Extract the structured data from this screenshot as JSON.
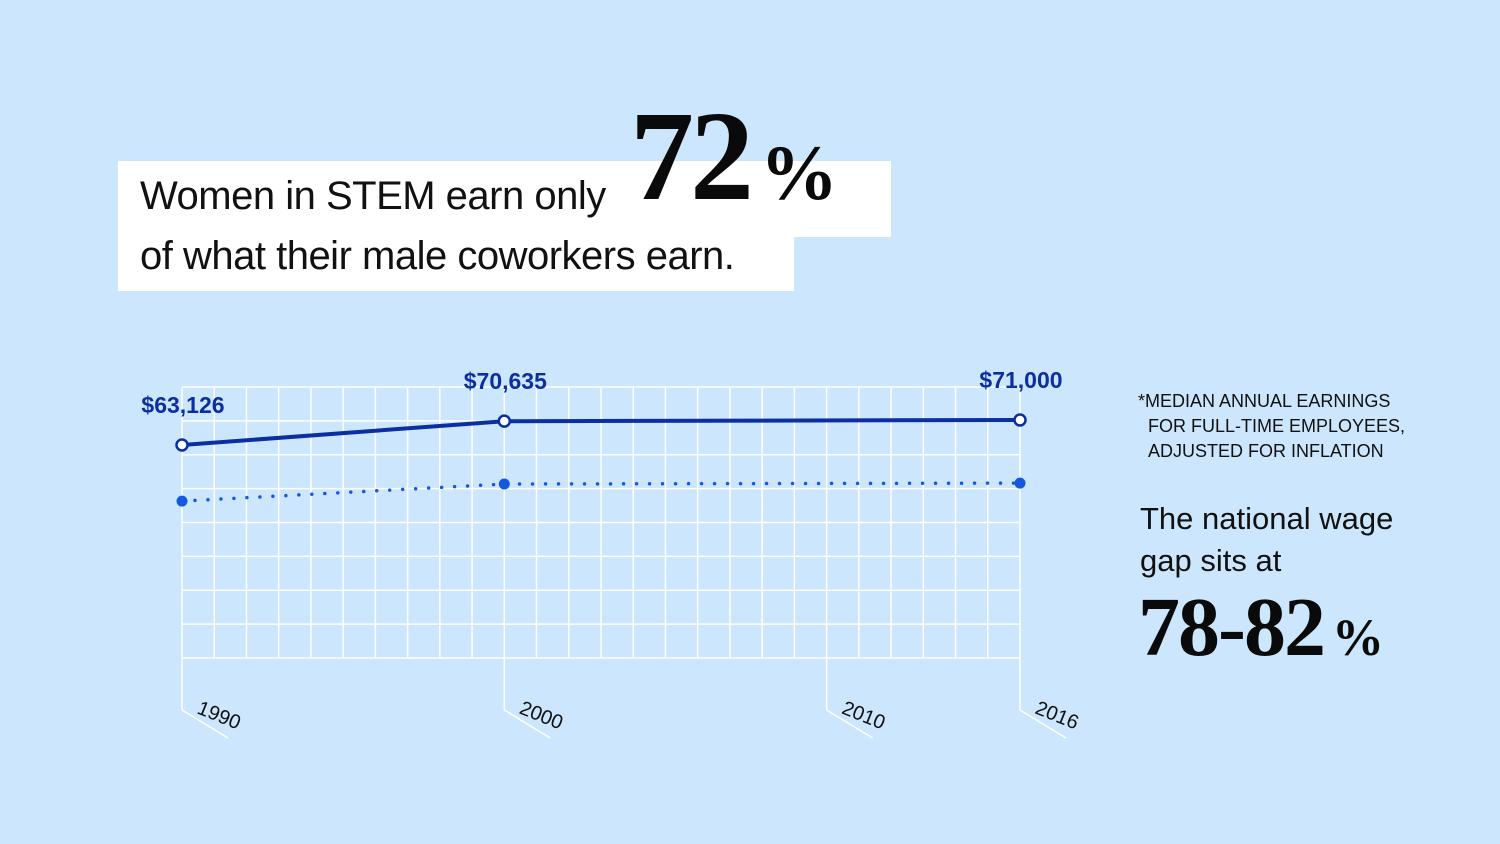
{
  "headline": {
    "line1": "Women in STEM earn only",
    "line2": "of what their male coworkers earn.",
    "stat_value": "72",
    "stat_symbol": "%"
  },
  "footnote": {
    "lines": [
      "*MEDIAN ANNUAL EARNINGS",
      "FOR FULL-TIME EMPLOYEES,",
      "ADJUSTED FOR INFLATION"
    ]
  },
  "national_gap": {
    "line1": "The national wage",
    "line2": "gap sits at",
    "value": "78-82",
    "symbol": "%"
  },
  "colors": {
    "background": "#cce6fd",
    "series_men": "#0b2fa0",
    "series_women": "#1558e0",
    "grid": "#ffffff",
    "label": "#0b2fa0"
  },
  "chart_data": {
    "type": "line",
    "x": [
      1990,
      2000,
      2016
    ],
    "x_tick_labels": [
      "1990",
      "2000",
      "2010",
      "2016"
    ],
    "x_ticks": [
      1990,
      2000,
      2010,
      2016
    ],
    "xlim": [
      1990,
      2016
    ],
    "grid": true,
    "series": [
      {
        "style": "solid",
        "values": [
          63126,
          70635,
          71000
        ],
        "data_labels": [
          "$63,126",
          "$70,635",
          "$71,000"
        ]
      },
      {
        "style": "dotted",
        "values": [
          45450,
          50857,
          51120
        ],
        "data_labels": []
      }
    ]
  }
}
